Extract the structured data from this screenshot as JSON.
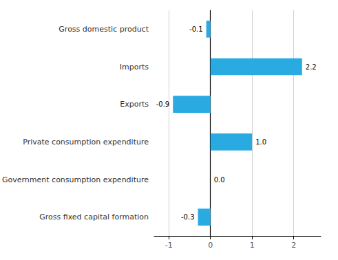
{
  "chart_data": {
    "type": "bar",
    "orientation": "horizontal",
    "categories": [
      "Gross fixed capital formation",
      "Government consumption expenditure",
      "Private consumption expenditure",
      "Exports",
      "Imports",
      "Gross domestic product"
    ],
    "values": [
      -0.3,
      0.0,
      1.0,
      -0.9,
      2.2,
      -0.1
    ],
    "value_labels": [
      "-0.3",
      "0.0",
      "1.0",
      "-0.9",
      "2.2",
      "-0.1"
    ],
    "data_labels": true,
    "color": "#29abe2",
    "xlim": [
      -1.35,
      2.65
    ],
    "xticks": [
      -1,
      0,
      1,
      2
    ],
    "grid": true
  }
}
